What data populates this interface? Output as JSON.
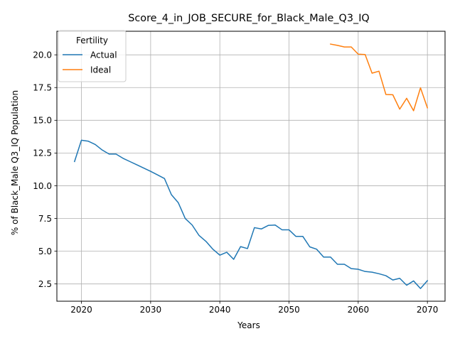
{
  "chart_data": {
    "type": "line",
    "title": "Score_4_in_JOB_SECURE_for_Black_Male_Q3_IQ",
    "xlabel": "Years",
    "ylabel": "% of Black_Male Q3_IQ Population",
    "xlim": [
      2016.45,
      2072.55
    ],
    "ylim": [
      1.18,
      21.8
    ],
    "x_ticks": [
      2020,
      2030,
      2040,
      2050,
      2060,
      2070
    ],
    "y_ticks": [
      2.5,
      5.0,
      7.5,
      10.0,
      12.5,
      15.0,
      17.5,
      20.0
    ],
    "y_tick_labels": [
      "2.5",
      "5.0",
      "7.5",
      "10.0",
      "12.5",
      "15.0",
      "17.5",
      "20.0"
    ],
    "grid": true,
    "legend": {
      "title": "Fertility",
      "placement": "top-left"
    },
    "series": [
      {
        "name": "Actual",
        "color": "#1f77b4",
        "x": [
          2019,
          2020,
          2021,
          2022,
          2023,
          2024,
          2025,
          2026,
          2027,
          2028,
          2029,
          2030,
          2031,
          2032,
          2033,
          2034,
          2035,
          2036,
          2037,
          2038,
          2039,
          2040,
          2041,
          2042,
          2043,
          2044,
          2045,
          2046,
          2047,
          2048,
          2049,
          2050,
          2051,
          2052,
          2053,
          2054,
          2055,
          2056,
          2057,
          2058,
          2059,
          2060,
          2061,
          2062,
          2063,
          2064,
          2065,
          2066,
          2067,
          2068,
          2069,
          2070
        ],
        "values": [
          11.85,
          13.48,
          13.4,
          13.15,
          12.73,
          12.42,
          12.42,
          12.1,
          11.85,
          11.6,
          11.35,
          11.1,
          10.83,
          10.55,
          9.32,
          8.7,
          7.5,
          7.0,
          6.2,
          5.75,
          5.15,
          4.7,
          4.92,
          4.38,
          5.35,
          5.2,
          6.8,
          6.7,
          6.97,
          7.0,
          6.63,
          6.63,
          6.13,
          6.13,
          5.33,
          5.15,
          4.55,
          4.55,
          4.0,
          4.0,
          3.67,
          3.62,
          3.45,
          3.4,
          3.28,
          3.13,
          2.8,
          2.93,
          2.4,
          2.73,
          2.15,
          2.75
        ]
      },
      {
        "name": "Ideal",
        "color": "#ff7f0e",
        "x": [
          2056,
          2057,
          2058,
          2059,
          2060,
          2061,
          2062,
          2063,
          2064,
          2065,
          2066,
          2067,
          2068,
          2069,
          2070
        ],
        "values": [
          20.82,
          20.72,
          20.6,
          20.6,
          20.05,
          20.02,
          18.6,
          18.75,
          16.97,
          16.95,
          15.85,
          16.68,
          15.73,
          17.48,
          15.95
        ]
      }
    ]
  }
}
